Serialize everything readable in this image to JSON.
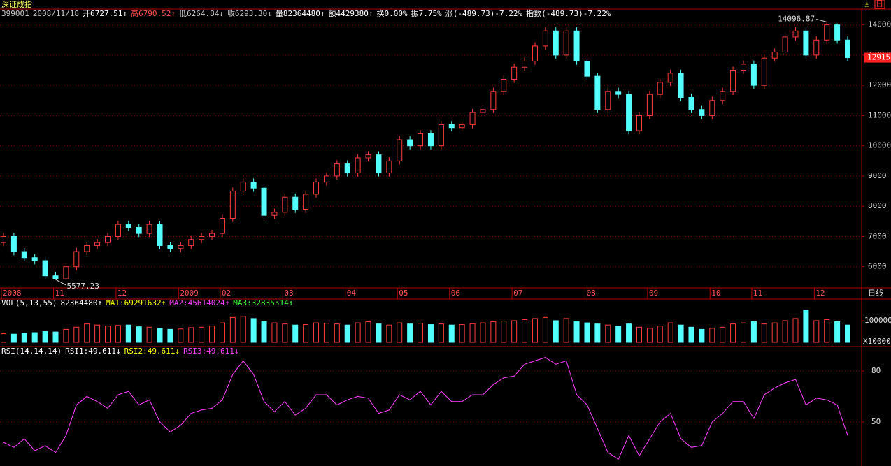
{
  "header": {
    "title": "深证成指",
    "corner_label": "日",
    "info": [
      {
        "text": "399001",
        "color": "#c8c8c8"
      },
      {
        "text": "2008/11/18",
        "color": "#c8c8c8"
      },
      {
        "text": "开6727.51↑",
        "color": "#ffffff"
      },
      {
        "text": "高6790.52↑",
        "color": "#ff5050"
      },
      {
        "text": "低6264.84↓",
        "color": "#c8c8c8"
      },
      {
        "text": "收6293.30↓",
        "color": "#c8c8c8"
      },
      {
        "text": "量82364480↑",
        "color": "#ffffff"
      },
      {
        "text": "额4429380↑",
        "color": "#ffffff"
      },
      {
        "text": "换0.00%",
        "color": "#ffffff"
      },
      {
        "text": "振7.75%",
        "color": "#ffffff"
      },
      {
        "text": "涨(-489.73)-7.22%",
        "color": "#ffffff"
      },
      {
        "text": "指数(-489.73)-7.22%",
        "color": "#ffffff"
      }
    ]
  },
  "chart_data": [
    {
      "type": "candlestick",
      "period_label": "日线",
      "up_color": "#ff3c3c",
      "down_color": "#54ffff",
      "categories": [
        "2008",
        null,
        null,
        null,
        null,
        "11",
        null,
        null,
        null,
        null,
        null,
        "12",
        null,
        null,
        null,
        null,
        null,
        "2009",
        null,
        null,
        null,
        "02",
        null,
        null,
        null,
        null,
        null,
        "03",
        null,
        null,
        null,
        null,
        null,
        "04",
        null,
        null,
        null,
        null,
        "05",
        null,
        null,
        null,
        null,
        "06",
        null,
        null,
        null,
        null,
        null,
        "07",
        null,
        null,
        null,
        null,
        null,
        null,
        "08",
        null,
        null,
        null,
        null,
        null,
        "09",
        null,
        null,
        null,
        null,
        null,
        "10",
        null,
        null,
        null,
        "11",
        null,
        null,
        null,
        null,
        null,
        "12",
        null,
        null,
        null
      ],
      "open": [
        6800,
        7000,
        6500,
        6300,
        6200,
        5700,
        5600,
        6000,
        6500,
        6700,
        6800,
        7000,
        7400,
        7300,
        7100,
        7400,
        6700,
        6600,
        6700,
        6900,
        7000,
        7100,
        7600,
        8500,
        8800,
        8600,
        7700,
        7800,
        8300,
        7900,
        8400,
        8800,
        9000,
        9400,
        9100,
        9600,
        9700,
        9100,
        9500,
        10200,
        10000,
        10400,
        10000,
        10700,
        10600,
        10700,
        11100,
        11200,
        11800,
        12200,
        12600,
        12800,
        13300,
        13800,
        13000,
        13800,
        12800,
        12300,
        11200,
        11800,
        11700,
        10500,
        11000,
        11700,
        12100,
        12400,
        11600,
        11200,
        11000,
        11500,
        11800,
        12500,
        12700,
        12000,
        12900,
        13100,
        13600,
        13800,
        13000,
        13500,
        14000,
        13500
      ],
      "high": [
        7120,
        7120,
        6620,
        6420,
        6320,
        5820,
        6120,
        6620,
        6820,
        6920,
        7120,
        7520,
        7520,
        7420,
        7520,
        7520,
        6820,
        6820,
        7020,
        7120,
        7220,
        7720,
        8620,
        8920,
        8920,
        8720,
        7920,
        8420,
        8420,
        8520,
        8920,
        9120,
        9520,
        9520,
        9720,
        9820,
        9820,
        9620,
        10320,
        10320,
        10520,
        10520,
        10820,
        10820,
        10820,
        11220,
        11320,
        11920,
        12320,
        12720,
        12920,
        13420,
        13920,
        13920,
        13920,
        13920,
        12920,
        12420,
        11920,
        11920,
        11820,
        11120,
        11820,
        12220,
        12520,
        12520,
        11720,
        11320,
        11620,
        11920,
        12620,
        12820,
        12820,
        13020,
        13220,
        13720,
        13920,
        13920,
        13620,
        14096.87,
        14050,
        13620
      ],
      "low": [
        6680,
        6380,
        6180,
        6080,
        5580,
        5577.23,
        5590,
        5880,
        6380,
        6580,
        6680,
        6880,
        7180,
        6980,
        6980,
        6580,
        6480,
        6480,
        6580,
        6780,
        6880,
        6980,
        7480,
        8380,
        8480,
        7580,
        7580,
        7680,
        7780,
        7780,
        8280,
        8680,
        8880,
        8980,
        8980,
        9480,
        8980,
        8980,
        9380,
        9880,
        9880,
        9880,
        9880,
        10480,
        10480,
        10580,
        10980,
        11080,
        11680,
        12080,
        12480,
        12680,
        13180,
        12880,
        12880,
        12680,
        12180,
        11080,
        11080,
        11580,
        10380,
        10380,
        10880,
        11580,
        11980,
        11480,
        11080,
        10880,
        10880,
        11380,
        11680,
        12380,
        11880,
        11880,
        12780,
        12980,
        13480,
        12880,
        12880,
        13380,
        13380,
        12795
      ],
      "close": [
        7000,
        6500,
        6300,
        6200,
        5700,
        5600,
        6000,
        6500,
        6700,
        6800,
        7000,
        7400,
        7300,
        7100,
        7400,
        6700,
        6600,
        6700,
        6900,
        7000,
        7100,
        7600,
        8500,
        8800,
        8600,
        7700,
        7800,
        8300,
        7900,
        8400,
        8800,
        9000,
        9400,
        9100,
        9600,
        9700,
        9100,
        9500,
        10200,
        10000,
        10400,
        10000,
        10700,
        10600,
        10700,
        11100,
        11200,
        11800,
        12200,
        12600,
        12800,
        13300,
        13800,
        13000,
        13800,
        12800,
        12300,
        11200,
        11800,
        11700,
        10500,
        11000,
        11700,
        12100,
        12400,
        11600,
        11200,
        11000,
        11500,
        11800,
        12500,
        12700,
        12000,
        12900,
        13100,
        13600,
        13800,
        13000,
        13500,
        14000,
        13500,
        12915
      ],
      "ylim": [
        5300,
        14500
      ],
      "yticks": [
        6000,
        7000,
        8000,
        9000,
        10000,
        11000,
        12000,
        13000,
        14000
      ],
      "grid": true
    },
    {
      "type": "bar",
      "texts": [
        {
          "text": "VOL(5,13,55)",
          "color": "#ffffff"
        },
        {
          "text": "82364480↑",
          "color": "#ffffff"
        },
        {
          "text": "MA1:69291632↑",
          "color": "#ffff00"
        },
        {
          "text": "MA2:45614024↑",
          "color": "#ff40ff"
        },
        {
          "text": "MA3:32835514↑",
          "color": "#40ff40"
        }
      ],
      "y_unit": "X10000",
      "values": [
        40000,
        38000,
        42000,
        45000,
        50000,
        48000,
        60000,
        70000,
        85000,
        80000,
        75000,
        78000,
        80000,
        72000,
        70000,
        65000,
        60000,
        62000,
        68000,
        70000,
        75000,
        90000,
        115000,
        120000,
        110000,
        95000,
        90000,
        85000,
        80000,
        82000,
        90000,
        88000,
        85000,
        80000,
        90000,
        95000,
        85000,
        80000,
        90000,
        85000,
        88000,
        82000,
        85000,
        80000,
        82000,
        86000,
        90000,
        95000,
        98000,
        100000,
        105000,
        110000,
        115000,
        100000,
        110000,
        95000,
        90000,
        85000,
        80000,
        75000,
        85000,
        70000,
        65000,
        75000,
        90000,
        80000,
        70000,
        60000,
        65000,
        70000,
        85000,
        90000,
        95000,
        85000,
        90000,
        100000,
        110000,
        150000,
        100000,
        105000,
        95000,
        80000
      ],
      "ylim": [
        0,
        200000
      ],
      "yticks": [
        100000
      ]
    },
    {
      "type": "line",
      "texts": [
        {
          "text": "RSI(14,14,14)",
          "color": "#ffffff"
        },
        {
          "text": "RSI1:49.611↓",
          "color": "#ffffff"
        },
        {
          "text": "RSI2:49.611↓",
          "color": "#ffff00"
        },
        {
          "text": "RSI3:49.611↓",
          "color": "#ff40ff"
        }
      ],
      "color": "#ff40ff",
      "values": [
        38,
        35,
        40,
        33,
        36,
        32,
        42,
        60,
        65,
        62,
        58,
        66,
        68,
        60,
        63,
        50,
        44,
        48,
        55,
        57,
        58,
        63,
        78,
        86,
        78,
        62,
        56,
        62,
        54,
        58,
        66,
        66,
        60,
        63,
        65,
        64,
        55,
        57,
        66,
        63,
        68,
        60,
        68,
        62,
        62,
        66,
        66,
        72,
        76,
        77,
        84,
        86,
        88,
        84,
        86,
        66,
        60,
        46,
        32,
        28,
        42,
        30,
        40,
        50,
        55,
        40,
        35,
        36,
        50,
        55,
        62,
        62,
        52,
        66,
        70,
        73,
        75,
        60,
        64,
        63,
        60,
        42
      ],
      "ylim": [
        24,
        94
      ],
      "yticks": [
        50,
        80
      ],
      "grid": true
    }
  ]
}
